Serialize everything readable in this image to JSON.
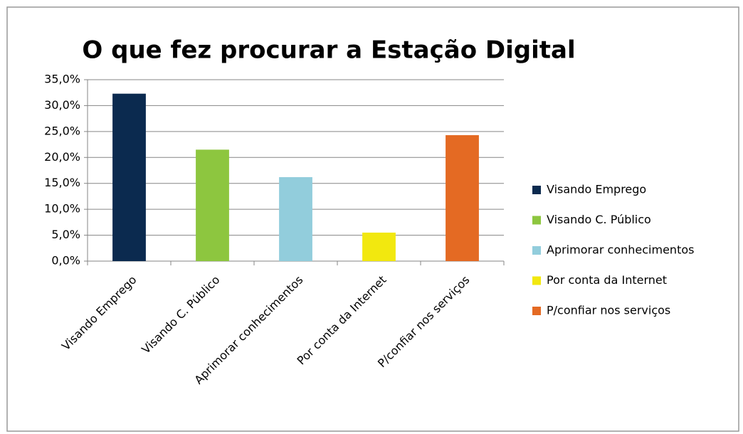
{
  "chart_data": {
    "type": "bar",
    "title": "O que fez procurar a Estação Digital",
    "categories": [
      "Visando Emprego",
      "Visando C. Público",
      "Aprimorar conhecimentos",
      "Por conta da Internet",
      "P/confiar nos serviços"
    ],
    "values": [
      32.3,
      21.5,
      16.2,
      5.5,
      24.3
    ],
    "colors": [
      "#0b2a4f",
      "#8dc63f",
      "#92cddc",
      "#f2e80f",
      "#e46a23"
    ],
    "ylim": [
      0,
      35
    ],
    "yticks": [
      {
        "value": 0,
        "label": "0,0%"
      },
      {
        "value": 5,
        "label": "5,0%"
      },
      {
        "value": 10,
        "label": "10,0%"
      },
      {
        "value": 15,
        "label": "15,0%"
      },
      {
        "value": 20,
        "label": "20,0%"
      },
      {
        "value": 25,
        "label": "25,0%"
      },
      {
        "value": 30,
        "label": "30,0%"
      },
      {
        "value": 35,
        "label": "35,0%"
      }
    ],
    "grid": true,
    "legend": "right"
  }
}
